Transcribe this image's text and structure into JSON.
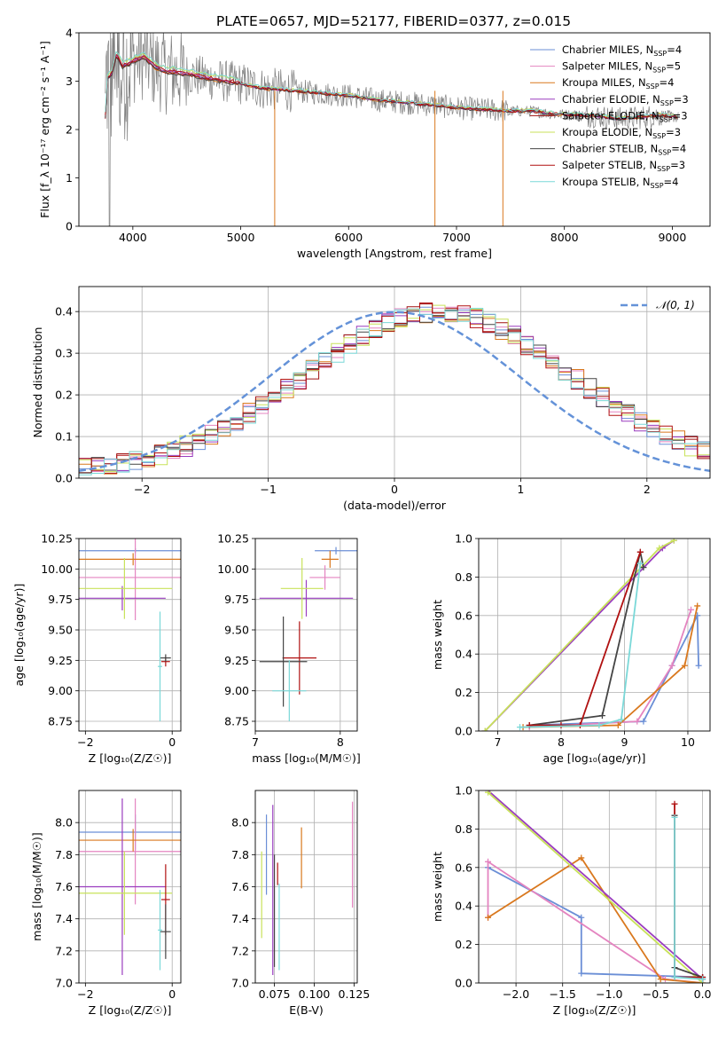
{
  "title": "PLATE=0657, MJD=52177, FIBERID=0377, z=0.015",
  "colors": {
    "chabrier_miles": "#6b8fd6",
    "salpeter_miles": "#e484c0",
    "kroupa_miles": "#d9781e",
    "chabrier_elodie": "#9a3dbf",
    "salpeter_elodie": "#a01010",
    "kroupa_elodie": "#c8e25a",
    "chabrier_stelib": "#444444",
    "salpeter_stelib": "#b01010",
    "kroupa_stelib": "#7ad8d8",
    "data": "#808080",
    "normal_curve": "#6492d8"
  },
  "chart_data": [
    {
      "id": "spectrum",
      "type": "line",
      "xlabel": "wavelength [Angstrom, rest frame]",
      "ylabel": "Flux [f_λ 10⁻¹⁷ erg cm⁻² s⁻¹ A⁻¹]",
      "xlim": [
        3500,
        9350
      ],
      "ylim": [
        0,
        4
      ],
      "xticks": [
        "4000",
        "5000",
        "6000",
        "7000",
        "8000",
        "9000"
      ],
      "yticks": [
        "0",
        "1",
        "2",
        "3",
        "4"
      ],
      "legend_position": "top-right",
      "legend": [
        {
          "label": "Chabrier MILES, N",
          "sub": "SSP",
          "suffix": "=4",
          "color_key": "chabrier_miles"
        },
        {
          "label": "Salpeter MILES, N",
          "sub": "SSP",
          "suffix": "=5",
          "color_key": "salpeter_miles"
        },
        {
          "label": "Kroupa MILES, N",
          "sub": "SSP",
          "suffix": "=4",
          "color_key": "kroupa_miles"
        },
        {
          "label": "Chabrier ELODIE, N",
          "sub": "SSP",
          "suffix": "=3",
          "color_key": "chabrier_elodie"
        },
        {
          "label": "Salpeter ELODIE, N",
          "sub": "SSP",
          "suffix": "=3",
          "color_key": "salpeter_elodie"
        },
        {
          "label": "Kroupa ELODIE, N",
          "sub": "SSP",
          "suffix": "=3",
          "color_key": "kroupa_elodie"
        },
        {
          "label": "Chabrier STELIB, N",
          "sub": "SSP",
          "suffix": "=4",
          "color_key": "chabrier_stelib"
        },
        {
          "label": "Salpeter STELIB, N",
          "sub": "SSP",
          "suffix": "=3",
          "color_key": "salpeter_stelib"
        },
        {
          "label": "Kroupa STELIB, N",
          "sub": "SSP",
          "suffix": "=4",
          "color_key": "kroupa_stelib"
        }
      ],
      "continuum": [
        [
          3750,
          3.05
        ],
        [
          3800,
          3.1
        ],
        [
          3850,
          3.55
        ],
        [
          3900,
          3.3
        ],
        [
          4000,
          3.4
        ],
        [
          4100,
          3.5
        ],
        [
          4200,
          3.3
        ],
        [
          4300,
          3.2
        ],
        [
          4500,
          3.15
        ],
        [
          4700,
          3.05
        ],
        [
          5000,
          2.95
        ],
        [
          5200,
          2.85
        ],
        [
          5500,
          2.8
        ],
        [
          6000,
          2.7
        ],
        [
          6300,
          2.6
        ],
        [
          6563,
          2.55
        ],
        [
          6800,
          2.5
        ],
        [
          7000,
          2.45
        ],
        [
          7200,
          2.42
        ],
        [
          7500,
          2.38
        ],
        [
          7700,
          2.38
        ],
        [
          7900,
          2.32
        ],
        [
          8100,
          2.3
        ],
        [
          8300,
          2.28
        ],
        [
          8500,
          2.22
        ],
        [
          8700,
          2.25
        ],
        [
          8900,
          2.3
        ],
        [
          9050,
          2.25
        ]
      ]
    },
    {
      "id": "residual-histogram",
      "type": "bar",
      "xlabel": "(data-model)/error",
      "ylabel": "Normed distribution",
      "xlim": [
        -2.5,
        2.5
      ],
      "ylim": [
        0,
        0.46
      ],
      "xticks": [
        "−2",
        "−1",
        "0",
        "1",
        "2"
      ],
      "yticks": [
        "0.0",
        "0.1",
        "0.2",
        "0.3",
        "0.4"
      ],
      "grid": true,
      "legend_position": "top-right",
      "legend": [
        {
          "label": "𝒩(0, 1)",
          "color_key": "normal_curve"
        }
      ],
      "bin_width": 0.1,
      "bin_start": -2.5,
      "reference_values": [
        0.024,
        0.026,
        0.03,
        0.035,
        0.04,
        0.048,
        0.056,
        0.066,
        0.077,
        0.09,
        0.104,
        0.119,
        0.136,
        0.155,
        0.174,
        0.194,
        0.215,
        0.236,
        0.258,
        0.28,
        0.301,
        0.321,
        0.34,
        0.357,
        0.372,
        0.384,
        0.393,
        0.398,
        0.4,
        0.398,
        0.393,
        0.384,
        0.372,
        0.357,
        0.34,
        0.321,
        0.301,
        0.28,
        0.258,
        0.236,
        0.215,
        0.194,
        0.174,
        0.155,
        0.136,
        0.119,
        0.104,
        0.09,
        0.077,
        0.066
      ]
    },
    {
      "id": "age-vs-metallicity",
      "type": "scatter",
      "xlabel": "Z [log₁₀(Z/Z☉)]",
      "ylabel": "age  [log₁₀(age/yr)]",
      "xlim": [
        -2.15,
        0.2
      ],
      "ylim": [
        8.67,
        10.25
      ],
      "xticks": [
        "−2",
        "0"
      ],
      "yticks": [
        "8.75",
        "9.00",
        "9.25",
        "9.50",
        "9.75",
        "10.00",
        "10.25"
      ],
      "grid": true,
      "points": [
        {
          "key": "chabrier_miles",
          "x": -0.85,
          "xerr": 1.3,
          "y": 10.15,
          "yerr": 0.02
        },
        {
          "key": "salpeter_miles",
          "x": -0.85,
          "xerr": 1.35,
          "y": 9.93,
          "yerr": 0.35
        },
        {
          "key": "kroupa_miles",
          "x": -0.9,
          "xerr": 1.25,
          "y": 10.08,
          "yerr": 0.05
        },
        {
          "key": "chabrier_elodie",
          "x": -1.15,
          "xerr": 1.0,
          "y": 9.76,
          "yerr": 0.1
        },
        {
          "key": "kroupa_elodie",
          "x": -1.1,
          "xerr": 1.1,
          "y": 9.84,
          "yerr": 0.25
        },
        {
          "key": "salpeter_stelib",
          "x": -0.15,
          "xerr": 0.1,
          "y": 9.24,
          "yerr": 0.04
        },
        {
          "key": "chabrier_stelib",
          "x": -0.15,
          "xerr": 0.12,
          "y": 9.27,
          "yerr": 0.03
        },
        {
          "key": "kroupa_stelib",
          "x": -0.28,
          "xerr": 0.05,
          "y": 9.2,
          "yerr": 0.45
        }
      ]
    },
    {
      "id": "age-vs-mass",
      "type": "scatter",
      "xlabel": "mass [log₁₀(M/M☉)]",
      "ylabel": "",
      "xlim": [
        7.0,
        8.2
      ],
      "ylim": [
        8.67,
        10.25
      ],
      "xticks": [
        "7",
        "8"
      ],
      "yticks": [
        "8.75",
        "9.00",
        "9.25",
        "9.50",
        "9.75",
        "10.00",
        "10.25"
      ],
      "grid": true,
      "points": [
        {
          "key": "chabrier_miles",
          "x": 7.95,
          "xerr": 0.25,
          "y": 10.15,
          "yerr": 0.03
        },
        {
          "key": "salpeter_miles",
          "x": 7.82,
          "xerr": 0.18,
          "y": 9.93,
          "yerr": 0.1
        },
        {
          "key": "kroupa_miles",
          "x": 7.88,
          "xerr": 0.1,
          "y": 10.08,
          "yerr": 0.07
        },
        {
          "key": "chabrier_elodie",
          "x": 7.6,
          "xerr": 0.55,
          "y": 9.76,
          "yerr": 0.15
        },
        {
          "key": "kroupa_elodie",
          "x": 7.55,
          "xerr": 0.25,
          "y": 9.84,
          "yerr": 0.25
        },
        {
          "key": "salpeter_stelib",
          "x": 7.52,
          "xerr": 0.2,
          "y": 9.27,
          "yerr": 0.3
        },
        {
          "key": "chabrier_stelib",
          "x": 7.33,
          "xerr": 0.28,
          "y": 9.24,
          "yerr": 0.37
        },
        {
          "key": "kroupa_stelib",
          "x": 7.4,
          "xerr": 0.2,
          "y": 9.0,
          "yerr": 0.25
        }
      ]
    },
    {
      "id": "mass-weight-vs-age",
      "type": "line",
      "xlabel": "age  [log₁₀(age/yr)]",
      "ylabel": "mass weight",
      "xlim": [
        6.7,
        10.35
      ],
      "ylim": [
        0,
        1
      ],
      "xticks": [
        "7",
        "8",
        "9",
        "10"
      ],
      "yticks": [
        "0.0",
        "0.2",
        "0.4",
        "0.6",
        "0.8",
        "1.0"
      ],
      "grid": true,
      "series": [
        {
          "key": "chabrier_miles",
          "x": [
            7.5,
            9.3,
            9.75,
            10.15,
            10.17
          ],
          "y": [
            0.03,
            0.05,
            0.34,
            0.6,
            0.34
          ]
        },
        {
          "key": "salpeter_miles",
          "x": [
            7.5,
            9.2,
            9.75,
            10.05
          ],
          "y": [
            0.02,
            0.05,
            0.34,
            0.63
          ]
        },
        {
          "key": "kroupa_miles",
          "x": [
            7.4,
            8.9,
            9.95,
            10.15
          ],
          "y": [
            0.02,
            0.03,
            0.34,
            0.65
          ]
        },
        {
          "key": "chabrier_elodie",
          "x": [
            6.8,
            9.6,
            9.78
          ],
          "y": [
            0.0,
            0.95,
            0.99
          ]
        },
        {
          "key": "kroupa_elodie",
          "x": [
            6.8,
            9.55,
            9.78
          ],
          "y": [
            0.0,
            0.95,
            0.99
          ]
        },
        {
          "key": "chabrier_stelib",
          "x": [
            7.5,
            8.65,
            9.25,
            9.3
          ],
          "y": [
            0.03,
            0.08,
            0.93,
            0.85
          ]
        },
        {
          "key": "salpeter_stelib",
          "x": [
            7.5,
            8.0,
            8.3,
            9.25
          ],
          "y": [
            0.03,
            0.03,
            0.03,
            0.93
          ]
        },
        {
          "key": "kroupa_stelib",
          "x": [
            7.35,
            8.6,
            8.95,
            9.25
          ],
          "y": [
            0.02,
            0.03,
            0.06,
            0.87
          ]
        }
      ]
    },
    {
      "id": "mass-vs-metallicity",
      "type": "scatter",
      "xlabel": "Z [log₁₀(Z/Z☉)]",
      "ylabel": "mass [log₁₀(M/M☉)]",
      "xlim": [
        -2.15,
        0.2
      ],
      "ylim": [
        7.0,
        8.2
      ],
      "xticks": [
        "−2",
        "0"
      ],
      "yticks": [
        "7.0",
        "7.2",
        "7.4",
        "7.6",
        "7.8",
        "8.0"
      ],
      "grid": true,
      "points": [
        {
          "key": "chabrier_miles",
          "x": -0.85,
          "xerr": 1.3,
          "y": 7.94,
          "yerr": 0.11
        },
        {
          "key": "salpeter_miles",
          "x": -0.85,
          "xerr": 1.35,
          "y": 7.82,
          "yerr": 0.33
        },
        {
          "key": "kroupa_miles",
          "x": -0.9,
          "xerr": 1.25,
          "y": 7.89,
          "yerr": 0.07
        },
        {
          "key": "chabrier_elodie",
          "x": -1.15,
          "xerr": 1.0,
          "y": 7.6,
          "yerr": 0.55
        },
        {
          "key": "kroupa_elodie",
          "x": -1.1,
          "xerr": 1.1,
          "y": 7.56,
          "yerr": 0.26
        },
        {
          "key": "salpeter_stelib",
          "x": -0.15,
          "xerr": 0.1,
          "y": 7.52,
          "yerr": 0.22
        },
        {
          "key": "chabrier_stelib",
          "x": -0.15,
          "xerr": 0.12,
          "y": 7.32,
          "yerr": 0.17
        },
        {
          "key": "kroupa_stelib",
          "x": -0.28,
          "xerr": 0.05,
          "y": 7.33,
          "yerr": 0.25
        }
      ]
    },
    {
      "id": "mass-vs-extinction",
      "type": "scatter",
      "xlabel": "E(B-V)",
      "ylabel": "",
      "xlim": [
        0.063,
        0.127
      ],
      "ylim": [
        7.0,
        8.2
      ],
      "xticks": [
        "0.075",
        "0.100",
        "0.125"
      ],
      "yticks": [
        "7.0",
        "7.2",
        "7.4",
        "7.6",
        "7.8",
        "8.0"
      ],
      "grid": true,
      "points": [
        {
          "key": "chabrier_miles",
          "x": 0.07,
          "y": 7.8,
          "yerr": 0.25
        },
        {
          "key": "salpeter_miles",
          "x": 0.124,
          "y": 7.8,
          "yerr": 0.33
        },
        {
          "key": "kroupa_miles",
          "x": 0.092,
          "y": 7.78,
          "yerr": 0.19
        },
        {
          "key": "chabrier_elodie",
          "x": 0.074,
          "y": 7.58,
          "yerr": 0.53
        },
        {
          "key": "kroupa_elodie",
          "x": 0.067,
          "y": 7.55,
          "yerr": 0.27
        },
        {
          "key": "salpeter_stelib",
          "x": 0.077,
          "y": 7.68,
          "yerr": 0.07
        },
        {
          "key": "chabrier_stelib",
          "x": 0.075,
          "y": 7.45,
          "yerr": 0.35
        },
        {
          "key": "kroupa_stelib",
          "x": 0.078,
          "y": 7.35,
          "yerr": 0.27
        }
      ]
    },
    {
      "id": "mass-weight-vs-metallicity",
      "type": "line",
      "xlabel": "Z [log₁₀(Z/Z☉)]",
      "ylabel": "mass weight",
      "xlim": [
        -2.4,
        0.08
      ],
      "ylim": [
        0,
        1
      ],
      "xticks": [
        "−2.0",
        "−1.5",
        "−1.0",
        "−0.5",
        "0.0"
      ],
      "yticks": [
        "0.0",
        "0.2",
        "0.4",
        "0.6",
        "0.8",
        "1.0"
      ],
      "grid": true,
      "series": [
        {
          "key": "chabrier_miles",
          "x": [
            -2.3,
            -1.3,
            -1.3,
            0.0
          ],
          "y": [
            0.6,
            0.34,
            0.05,
            0.03
          ]
        },
        {
          "key": "salpeter_miles",
          "x": [
            -2.3,
            -2.3,
            -0.4,
            0.0
          ],
          "y": [
            0.34,
            0.63,
            0.02,
            0.0
          ]
        },
        {
          "key": "kroupa_miles",
          "x": [
            -2.3,
            -1.3,
            -0.45,
            0.0
          ],
          "y": [
            0.34,
            0.65,
            0.02,
            0.0
          ]
        },
        {
          "key": "chabrier_elodie",
          "x": [
            -2.3,
            0.0
          ],
          "y": [
            1.0,
            0.02
          ]
        },
        {
          "key": "kroupa_elodie",
          "x": [
            -2.3,
            0.0
          ],
          "y": [
            0.99,
            0.0
          ]
        },
        {
          "key": "chabrier_stelib",
          "x": [
            -0.3,
            -0.3,
            0.0,
            0.0
          ],
          "y": [
            0.87,
            0.08,
            0.03,
            0.02
          ]
        },
        {
          "key": "salpeter_stelib",
          "x": [
            -0.3,
            -0.3,
            0.0
          ],
          "y": [
            0.93,
            0.03,
            0.03
          ]
        },
        {
          "key": "kroupa_stelib",
          "x": [
            -0.3,
            -0.3,
            0.0
          ],
          "y": [
            0.86,
            0.03,
            0.02
          ]
        }
      ]
    }
  ]
}
